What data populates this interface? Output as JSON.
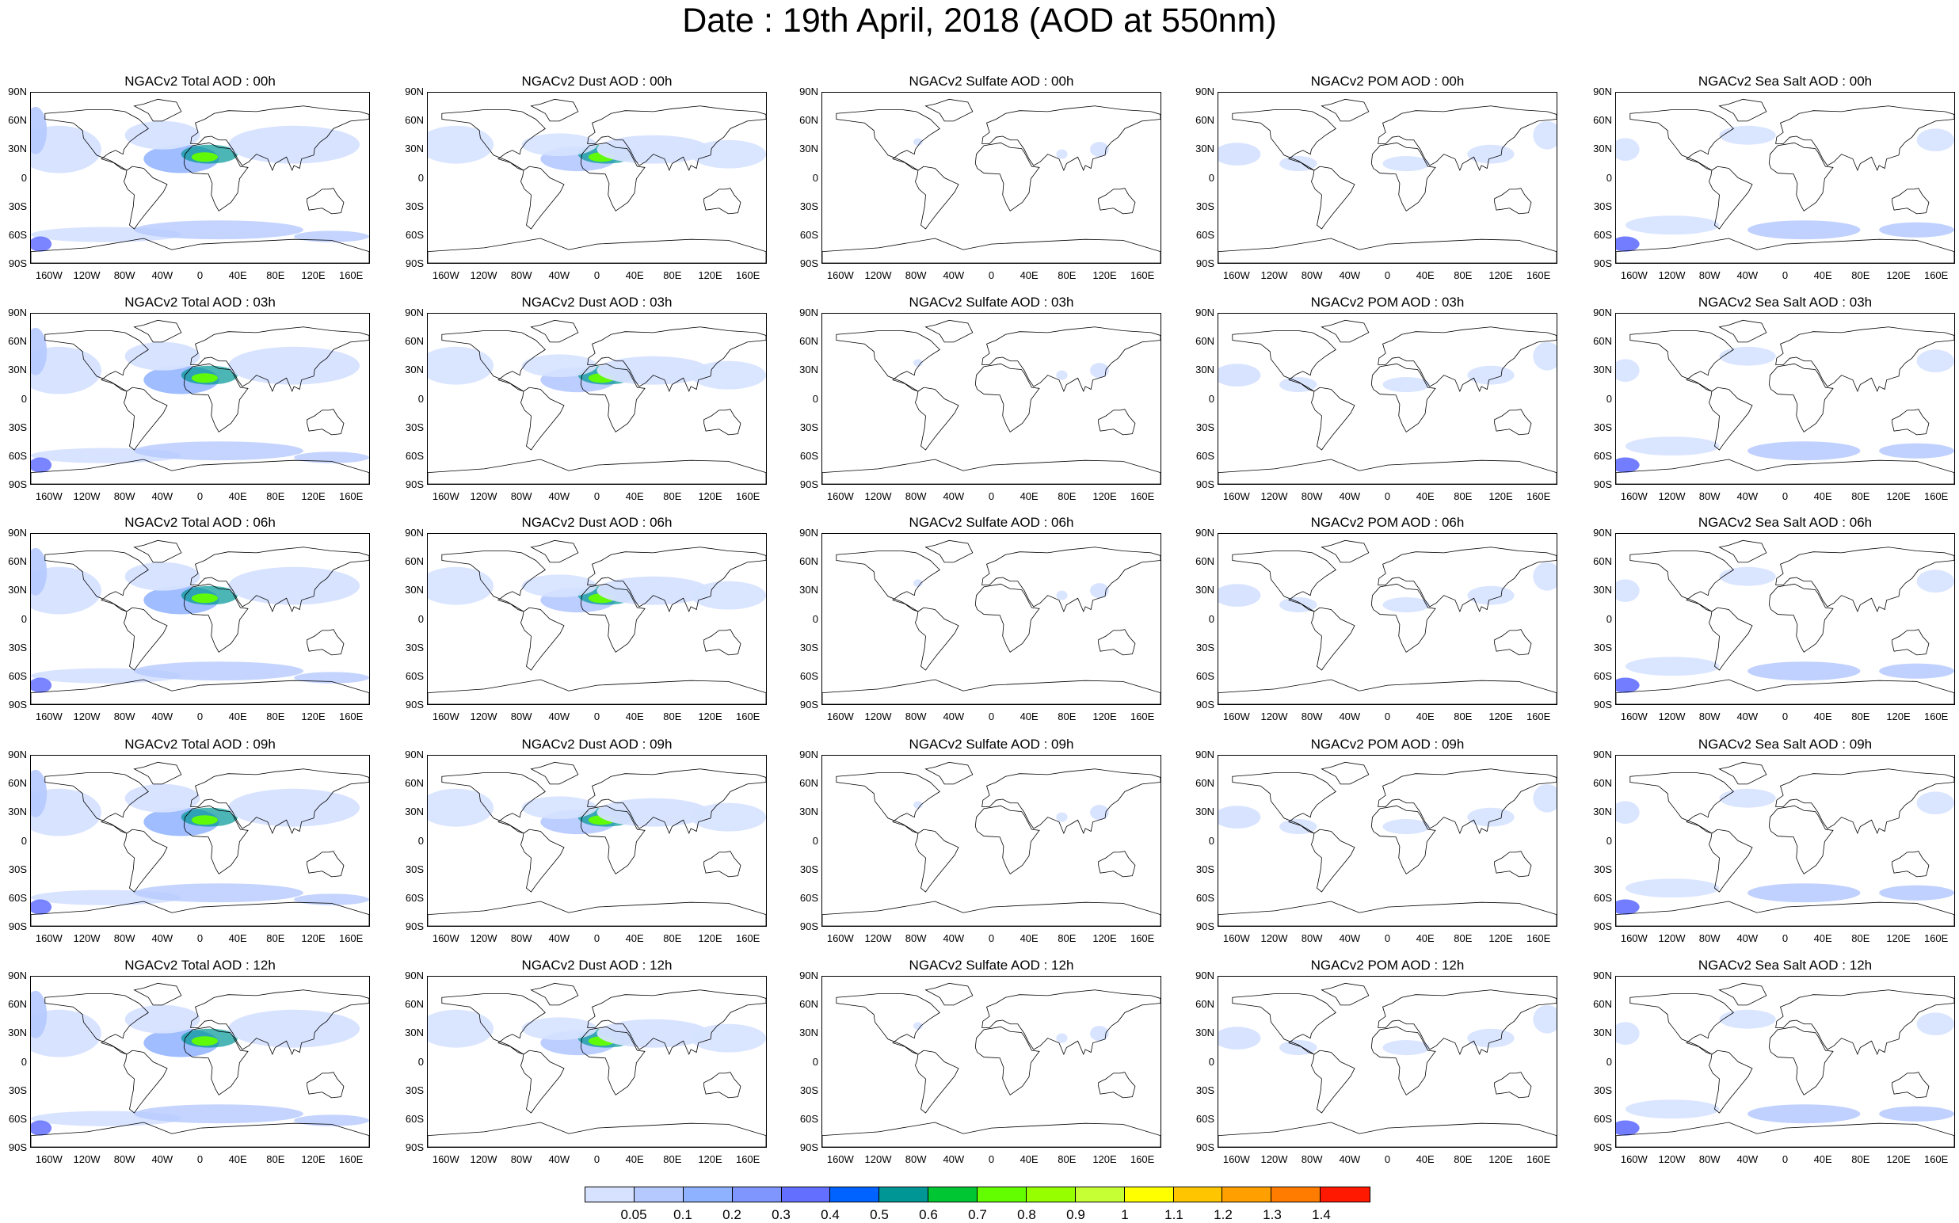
{
  "title": "Date : 19th April, 2018 (AOD at 550nm)",
  "lat_labels": [
    "90N",
    "60N",
    "30N",
    "0",
    "30S",
    "60S",
    "90S"
  ],
  "lon_labels": [
    "160W",
    "120W",
    "80W",
    "40W",
    "0",
    "40E",
    "80E",
    "120E",
    "160E"
  ],
  "panels": [
    [
      "NGACv2 Total AOD : 00h",
      "NGACv2 Dust AOD : 00h",
      "NGACv2 Sulfate AOD : 00h",
      "NGACv2 POM AOD : 00h",
      "NGACv2 Sea Salt AOD : 00h"
    ],
    [
      "NGACv2 Total AOD : 03h",
      "NGACv2 Dust AOD : 03h",
      "NGACv2 Sulfate AOD : 03h",
      "NGACv2 POM AOD : 03h",
      "NGACv2 Sea Salt AOD : 03h"
    ],
    [
      "NGACv2 Total AOD : 06h",
      "NGACv2 Dust AOD : 06h",
      "NGACv2 Sulfate AOD : 06h",
      "NGACv2 POM AOD : 06h",
      "NGACv2 Sea Salt AOD : 06h"
    ],
    [
      "NGACv2 Total AOD : 09h",
      "NGACv2 Dust AOD : 09h",
      "NGACv2 Sulfate AOD : 09h",
      "NGACv2 POM AOD : 09h",
      "NGACv2 Sea Salt  AOD : 09h"
    ],
    [
      "NGACv2 Total AOD  : 12h",
      "NGACv2 Dust AOD : 12h",
      "NGACv2 Sulfate AOD : 12h",
      "NGACv2 POM  AOD : 12h",
      "NGACv2 Sea Salt AOD : 12h"
    ]
  ],
  "colorbar": {
    "labels": [
      "0.05",
      "0.1",
      "0.2",
      "0.3",
      "0.4",
      "0.5",
      "0.6",
      "0.7",
      "0.8",
      "0.9",
      "1",
      "1.1",
      "1.2",
      "1.3",
      "1.4"
    ],
    "colors": [
      "#ffffff",
      "#d6e2ff",
      "#b5c9ff",
      "#8eb2ff",
      "#7f96ff",
      "#6370ff",
      "#0063ff",
      "#009696",
      "#00c633",
      "#63ff00",
      "#96ff00",
      "#c6ff33",
      "#ffff00",
      "#ffc600",
      "#ffa000",
      "#ff7c00",
      "#ff1900"
    ]
  },
  "theme": {
    "land_outline": "#000000",
    "aod_light": "#d6e2ff",
    "aod_mid": "#b5c9ff",
    "aod_blue": "#8eb2ff",
    "aod_dark": "#6370ff",
    "dust_green": "#63ff00",
    "dust_teal": "#009696"
  }
}
